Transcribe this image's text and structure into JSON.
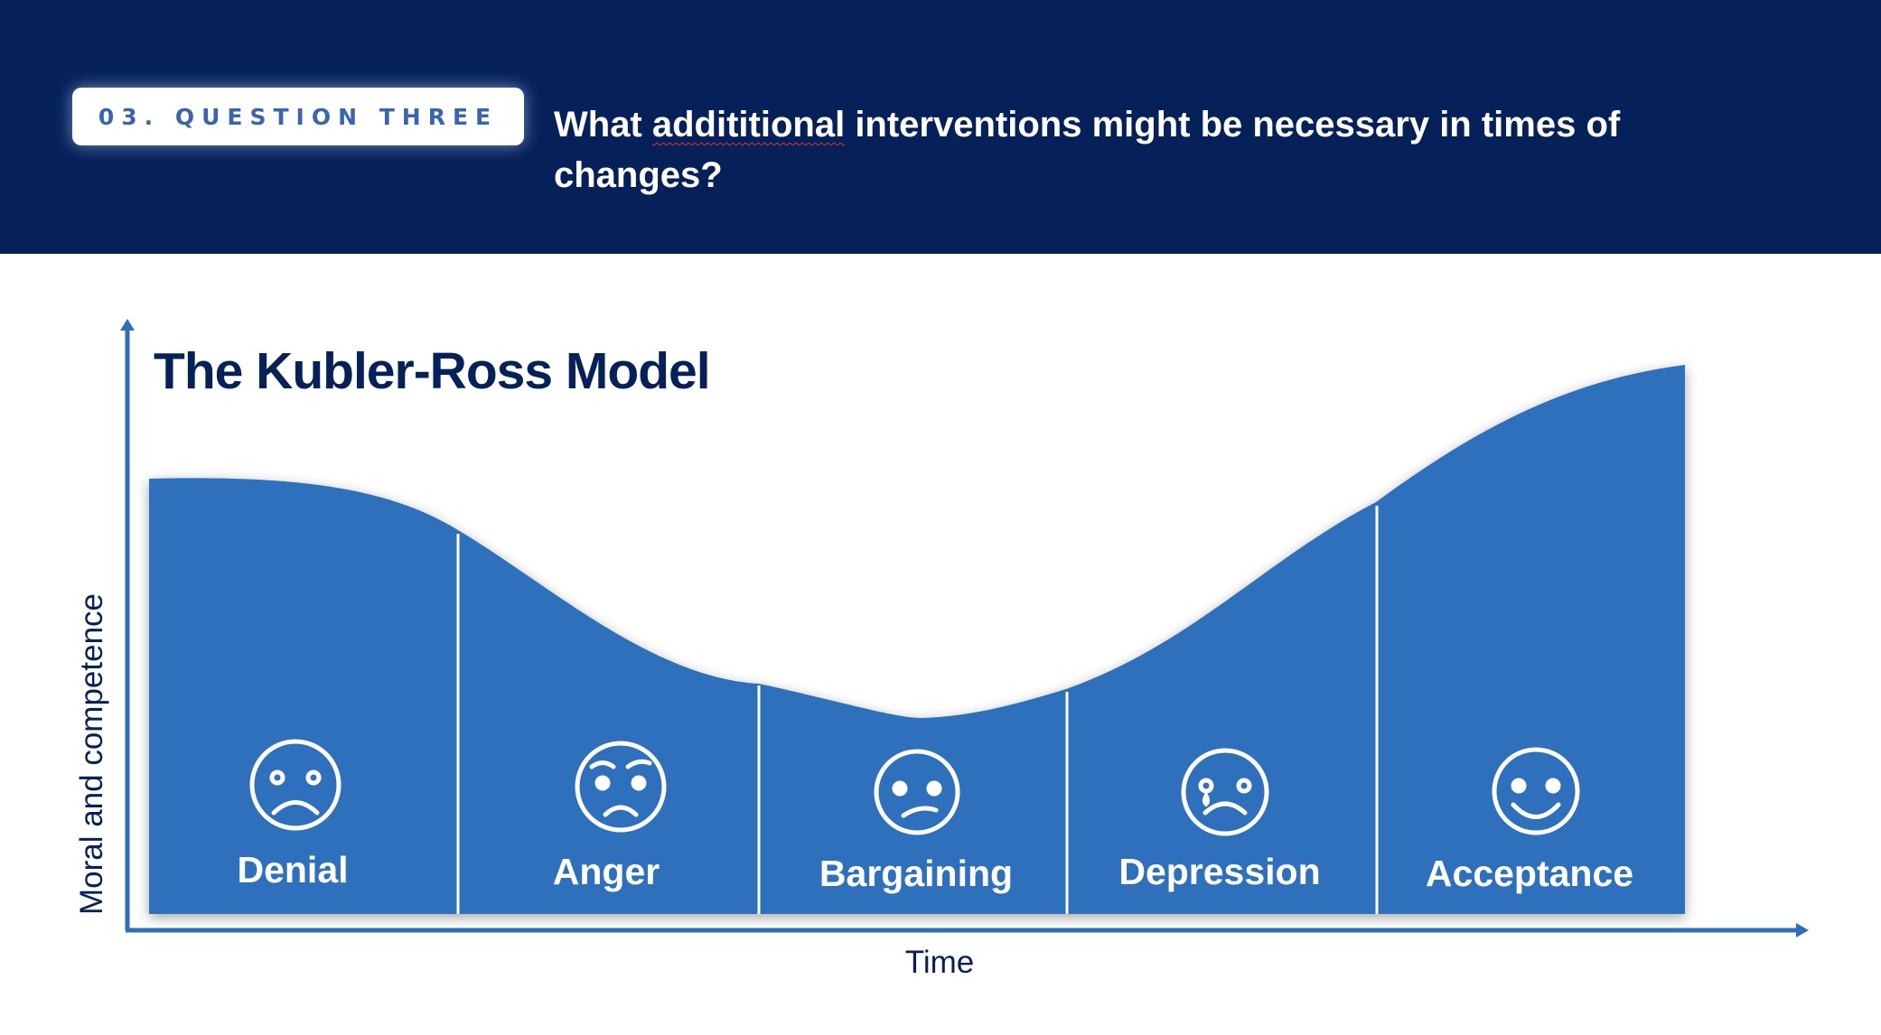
{
  "header": {
    "badge": "03. QUESTION THREE",
    "question_pre": "What ",
    "question_misspelled": "addititional",
    "question_post": " interventions might be necessary in times of changes?",
    "background_color": "#06215a"
  },
  "diagram": {
    "title": "The Kubler-Ross Model",
    "x_axis_label": "Time",
    "y_axis_label": "Moral and competence",
    "fill_color": "#2d6fbb",
    "axis_color": "#2d6fbb",
    "stages": [
      {
        "label": "Denial",
        "face": "sad-face-icon",
        "order": 1
      },
      {
        "label": "Anger",
        "face": "angry-face-icon",
        "order": 2
      },
      {
        "label": "Bargaining",
        "face": "uncertain-face-icon",
        "order": 3
      },
      {
        "label": "Depression",
        "face": "crying-face-icon",
        "order": 4
      },
      {
        "label": "Acceptance",
        "face": "smiling-face-icon",
        "order": 5
      }
    ]
  }
}
